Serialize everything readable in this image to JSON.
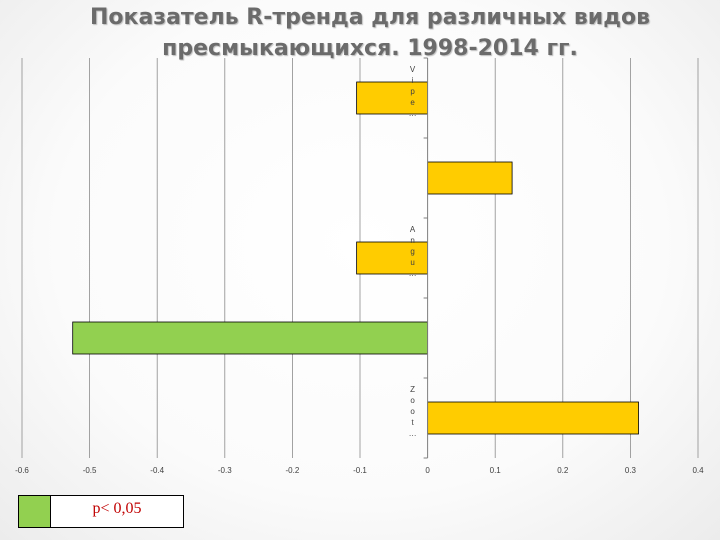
{
  "chart_data": {
    "type": "bar",
    "orientation": "horizontal",
    "title": "Показатель R-тренда для различных видов пресмыкающихся. 1998-2014 гг.",
    "xlim": [
      -0.6,
      0.4
    ],
    "xticks": [
      "-0.6",
      "-0.5",
      "-0.4",
      "-0.3",
      "-0.2",
      "-0.1",
      "0",
      "0.1",
      "0.2",
      "0.3",
      "0.4"
    ],
    "xtick_values": [
      -0.6,
      -0.5,
      -0.4,
      -0.3,
      -0.2,
      -0.1,
      0,
      0.1,
      0.2,
      0.3,
      0.4
    ],
    "categories": [
      "Vipe…",
      "",
      "Angu…",
      "",
      "Zoot…"
    ],
    "category_label_chars": [
      [
        "V",
        "i",
        "p",
        "e",
        "…"
      ],
      [],
      [
        "A",
        "n",
        "g",
        "u",
        "…"
      ],
      [],
      [
        "Z",
        "o",
        "o",
        "t",
        "…"
      ]
    ],
    "values": [
      -0.105,
      0.125,
      -0.105,
      -0.525,
      0.312
    ],
    "significant": [
      false,
      false,
      false,
      true,
      false
    ],
    "colors": {
      "default": "#ffcc00",
      "significant": "#92d050"
    },
    "grid": true
  },
  "legend": {
    "label": "p< 0,05",
    "color": "#92d050"
  }
}
